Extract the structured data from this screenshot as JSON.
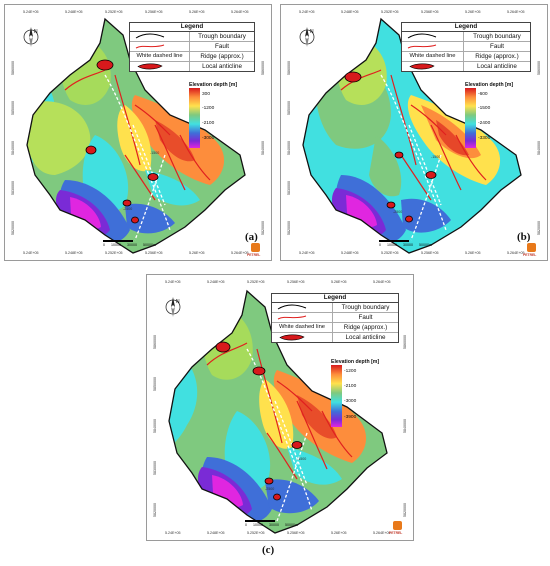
{
  "legend": {
    "title": "Legend",
    "items": [
      {
        "symbol": "trough-line",
        "label": "Trough boundary"
      },
      {
        "symbol": "fault-line",
        "label": "Fault"
      },
      {
        "symbol_text": "White dashed line",
        "label": "Ridge (approx.)"
      },
      {
        "symbol": "anticline",
        "label": "Local anticline"
      }
    ]
  },
  "colors": {
    "shallow": "#d7191c",
    "orange": "#fd8d3c",
    "yellow": "#ffe14d",
    "green": "#7fc97f",
    "cyan": "#41e0e0",
    "blue": "#3f6fd8",
    "deep": "#7a2bd6",
    "magenta": "#e026e0",
    "fault": "#e0201f"
  },
  "panels": [
    {
      "id": "a",
      "label": "(a)",
      "scale_title": "Elevation depth [m]",
      "scale_labels": [
        "300",
        "-1200",
        "-2100",
        "-3000"
      ],
      "top_coords": [
        "5.24E+05",
        "5.248E+05",
        "5.252E+05",
        "5.256E+05",
        "5.26E+05",
        "5.264E+05"
      ],
      "bottom_coords": [
        "5.24E+05",
        "5.248E+05",
        "5.252E+05",
        "5.256E+05",
        "5.26E+05",
        "5.264E+05"
      ],
      "side_coords": [
        "5860000",
        "5850000",
        "5840000",
        "5830000",
        "5820000"
      ],
      "scalebar": [
        "0",
        "10000",
        "30000",
        "50000m"
      ],
      "contour_labels": [
        "-1500",
        "-2500"
      ],
      "logo": "PETREL"
    },
    {
      "id": "b",
      "label": "(b)",
      "scale_title": "Elevation depth [m]",
      "scale_labels": [
        "-600",
        "-1500",
        "-2400",
        "-3300"
      ],
      "top_coords": [
        "5.24E+05",
        "5.248E+05",
        "5.252E+05",
        "5.256E+05",
        "5.26E+05",
        "5.264E+05"
      ],
      "bottom_coords": [
        "5.24E+05",
        "5.248E+05",
        "5.252E+05",
        "5.256E+05",
        "5.26E+05",
        "5.264E+05"
      ],
      "side_coords": [
        "5860000",
        "5850000",
        "5840000",
        "5830000",
        "5820000"
      ],
      "scalebar": [
        "0",
        "10000",
        "30000",
        "50000m"
      ],
      "contour_labels": [
        "-1500",
        "-2500"
      ],
      "logo": "PETREL"
    },
    {
      "id": "c",
      "label": "(c)",
      "scale_title": "Elevation depth [m]",
      "scale_labels": [
        "-1200",
        "-2100",
        "-3000",
        "-3900"
      ],
      "top_coords": [
        "5.24E+05",
        "5.248E+05",
        "5.252E+05",
        "5.256E+05",
        "5.26E+05",
        "5.264E+05"
      ],
      "bottom_coords": [
        "5.24E+05",
        "5.248E+05",
        "5.252E+05",
        "5.256E+05",
        "5.26E+05",
        "5.264E+05"
      ],
      "side_coords": [
        "5860000",
        "5850000",
        "5840000",
        "5830000",
        "5820000"
      ],
      "scalebar": [
        "0",
        "10000",
        "30000",
        "50000m"
      ],
      "contour_labels": [
        "-1500",
        "-2500"
      ],
      "logo": "PETREL"
    }
  ]
}
